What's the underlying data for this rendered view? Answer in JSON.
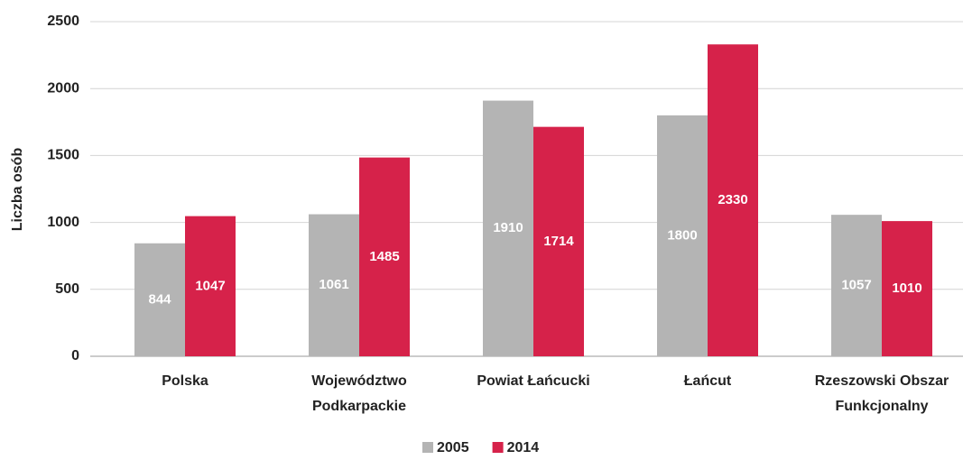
{
  "chart_data": {
    "type": "bar",
    "y_label": "Liczba osób",
    "categories": [
      "Polska",
      "Województwo Podkarpackie",
      "Powiat Łańcucki",
      "Łańcut",
      "Rzeszowski Obszar Funkcjonalny"
    ],
    "series": [
      {
        "name": "2005",
        "color": "#b4b4b4",
        "values": [
          844,
          1061,
          1910,
          1800,
          1057
        ]
      },
      {
        "name": "2014",
        "color": "#d6224a",
        "values": [
          1047,
          1485,
          1714,
          2330,
          1010
        ]
      }
    ],
    "ylim": [
      0,
      2500
    ],
    "yticks": [
      0,
      500,
      1000,
      1500,
      2000,
      2500
    ],
    "grid": true,
    "legend": "bottom"
  }
}
